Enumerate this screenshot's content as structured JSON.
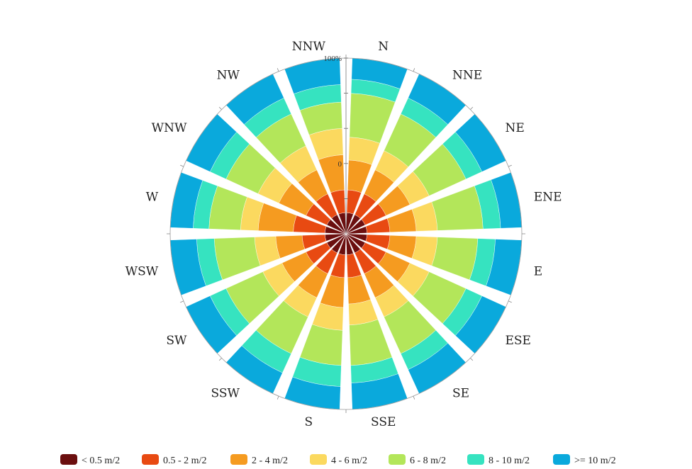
{
  "chart_data": {
    "type": "wind-rose",
    "directions": [
      "N",
      "NNE",
      "NE",
      "ENE",
      "E",
      "ESE",
      "SE",
      "SSE",
      "S",
      "SSW",
      "SW",
      "WSW",
      "W",
      "WNW",
      "NW",
      "NNW"
    ],
    "radial_ticks": [
      {
        "value": 100,
        "label": "100%"
      },
      {
        "value": 40,
        "label": "0"
      }
    ],
    "radial_max": 100,
    "legend_position": "bottom",
    "bins": [
      {
        "name": "< 0.5 m/2",
        "color": "#6b0f0f"
      },
      {
        "name": "0.5 - 2 m/2",
        "color": "#e84a12"
      },
      {
        "name": "2 - 4 m/2",
        "color": "#f59b20"
      },
      {
        "name": "4 - 6 m/2",
        "color": "#fbd95f"
      },
      {
        "name": "6 - 8 m/2",
        "color": "#b3e65a"
      },
      {
        "name": "8 - 10 m/2",
        "color": "#36e3c0"
      },
      {
        "name": ">= 10 m/2",
        "color": "#0aa9dc"
      }
    ],
    "cumulative_percent": {
      "N": [
        12,
        25,
        42,
        55,
        80,
        88,
        100
      ],
      "NNE": [
        12,
        25,
        40,
        52,
        75,
        85,
        100
      ],
      "NE": [
        12,
        25,
        40,
        52,
        75,
        85,
        100
      ],
      "ENE": [
        12,
        25,
        40,
        52,
        78,
        88,
        100
      ],
      "E": [
        12,
        25,
        40,
        52,
        75,
        85,
        100
      ],
      "ESE": [
        12,
        25,
        40,
        52,
        75,
        85,
        100
      ],
      "SE": [
        12,
        25,
        40,
        52,
        75,
        85,
        100
      ],
      "SSE": [
        12,
        25,
        40,
        52,
        75,
        85,
        100
      ],
      "S": [
        12,
        25,
        42,
        55,
        75,
        87,
        100
      ],
      "SSW": [
        12,
        25,
        40,
        52,
        75,
        87,
        100
      ],
      "SW": [
        12,
        25,
        40,
        52,
        75,
        85,
        100
      ],
      "WSW": [
        12,
        25,
        40,
        52,
        75,
        85,
        100
      ],
      "W": [
        12,
        30,
        50,
        60,
        78,
        87,
        100
      ],
      "WNW": [
        12,
        25,
        42,
        55,
        75,
        85,
        100
      ],
      "NW": [
        12,
        25,
        40,
        55,
        75,
        85,
        100
      ],
      "NNW": [
        12,
        25,
        45,
        60,
        75,
        85,
        100
      ]
    }
  }
}
